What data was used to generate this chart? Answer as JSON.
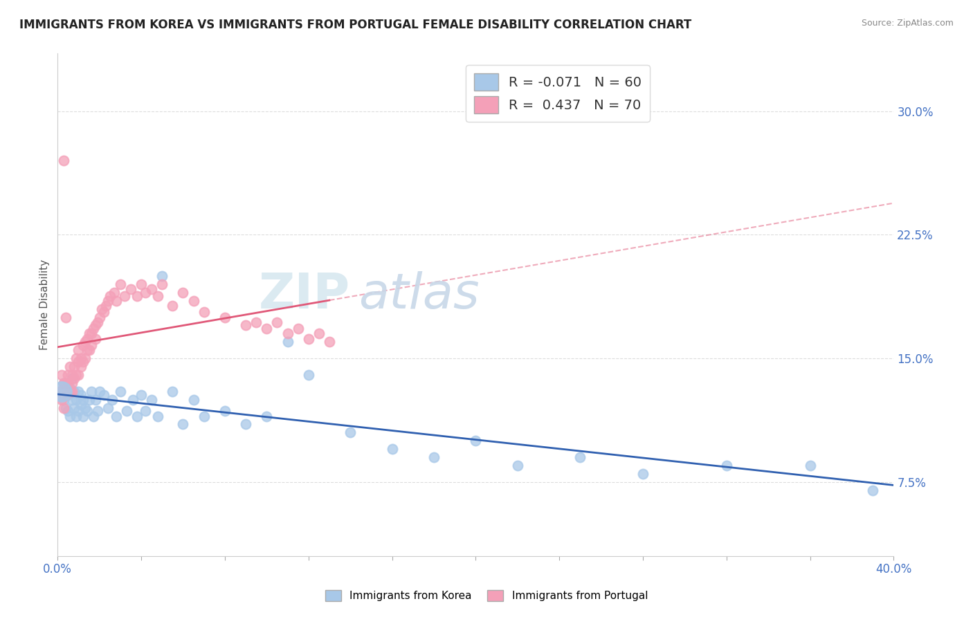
{
  "title": "IMMIGRANTS FROM KOREA VS IMMIGRANTS FROM PORTUGAL FEMALE DISABILITY CORRELATION CHART",
  "source": "Source: ZipAtlas.com",
  "ylabel": "Female Disability",
  "ylabel_right_ticks": [
    "7.5%",
    "15.0%",
    "22.5%",
    "30.0%"
  ],
  "ylabel_right_vals": [
    0.075,
    0.15,
    0.225,
    0.3
  ],
  "xmin": 0.0,
  "xmax": 0.4,
  "ymin": 0.03,
  "ymax": 0.335,
  "korea_R": -0.071,
  "korea_N": 60,
  "portugal_R": 0.437,
  "portugal_N": 70,
  "korea_color": "#a8c8e8",
  "portugal_color": "#f4a0b8",
  "korea_line_color": "#3060b0",
  "portugal_line_color": "#e05878",
  "background_color": "#ffffff",
  "watermark_zip": "ZIP",
  "watermark_atlas": "atlas",
  "korea_x": [
    0.002,
    0.003,
    0.003,
    0.004,
    0.005,
    0.005,
    0.006,
    0.006,
    0.007,
    0.007,
    0.008,
    0.008,
    0.009,
    0.009,
    0.01,
    0.01,
    0.011,
    0.011,
    0.012,
    0.012,
    0.013,
    0.014,
    0.015,
    0.016,
    0.017,
    0.018,
    0.019,
    0.02,
    0.022,
    0.024,
    0.026,
    0.028,
    0.03,
    0.033,
    0.036,
    0.038,
    0.04,
    0.042,
    0.045,
    0.048,
    0.05,
    0.055,
    0.06,
    0.065,
    0.07,
    0.08,
    0.09,
    0.1,
    0.11,
    0.12,
    0.14,
    0.16,
    0.18,
    0.2,
    0.22,
    0.25,
    0.28,
    0.32,
    0.36,
    0.39
  ],
  "korea_y": [
    0.13,
    0.125,
    0.135,
    0.12,
    0.128,
    0.118,
    0.132,
    0.115,
    0.125,
    0.138,
    0.12,
    0.13,
    0.115,
    0.125,
    0.118,
    0.13,
    0.122,
    0.128,
    0.115,
    0.125,
    0.12,
    0.118,
    0.125,
    0.13,
    0.115,
    0.125,
    0.118,
    0.13,
    0.128,
    0.12,
    0.125,
    0.115,
    0.13,
    0.118,
    0.125,
    0.115,
    0.128,
    0.118,
    0.125,
    0.115,
    0.2,
    0.13,
    0.11,
    0.125,
    0.115,
    0.118,
    0.11,
    0.115,
    0.16,
    0.14,
    0.105,
    0.095,
    0.09,
    0.1,
    0.085,
    0.09,
    0.08,
    0.085,
    0.085,
    0.07
  ],
  "portugal_x": [
    0.001,
    0.002,
    0.002,
    0.003,
    0.003,
    0.004,
    0.004,
    0.005,
    0.005,
    0.006,
    0.006,
    0.007,
    0.007,
    0.007,
    0.008,
    0.008,
    0.009,
    0.009,
    0.01,
    0.01,
    0.01,
    0.011,
    0.011,
    0.012,
    0.012,
    0.013,
    0.013,
    0.014,
    0.014,
    0.015,
    0.015,
    0.016,
    0.016,
    0.017,
    0.018,
    0.018,
    0.019,
    0.02,
    0.021,
    0.022,
    0.023,
    0.024,
    0.025,
    0.027,
    0.028,
    0.03,
    0.032,
    0.035,
    0.038,
    0.04,
    0.042,
    0.045,
    0.048,
    0.05,
    0.055,
    0.06,
    0.065,
    0.07,
    0.08,
    0.09,
    0.095,
    0.1,
    0.105,
    0.11,
    0.115,
    0.12,
    0.125,
    0.13,
    0.003,
    0.004
  ],
  "portugal_y": [
    0.13,
    0.125,
    0.14,
    0.135,
    0.12,
    0.135,
    0.128,
    0.14,
    0.135,
    0.13,
    0.145,
    0.135,
    0.14,
    0.13,
    0.145,
    0.138,
    0.15,
    0.14,
    0.148,
    0.155,
    0.14,
    0.15,
    0.145,
    0.158,
    0.148,
    0.16,
    0.15,
    0.162,
    0.155,
    0.165,
    0.155,
    0.165,
    0.158,
    0.168,
    0.17,
    0.162,
    0.172,
    0.175,
    0.18,
    0.178,
    0.182,
    0.185,
    0.188,
    0.19,
    0.185,
    0.195,
    0.188,
    0.192,
    0.188,
    0.195,
    0.19,
    0.192,
    0.188,
    0.195,
    0.182,
    0.19,
    0.185,
    0.178,
    0.175,
    0.17,
    0.172,
    0.168,
    0.172,
    0.165,
    0.168,
    0.162,
    0.165,
    0.16,
    0.27,
    0.175
  ]
}
